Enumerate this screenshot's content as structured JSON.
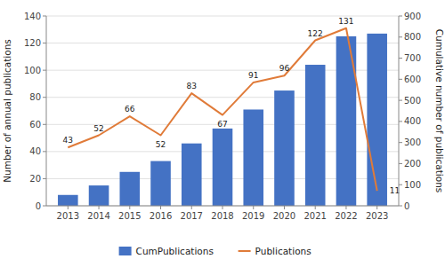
{
  "chart_data": {
    "type": "bar",
    "x": [
      2013,
      2014,
      2015,
      2016,
      2017,
      2018,
      2019,
      2020,
      2021,
      2022,
      2023
    ],
    "xlim": [
      2012.3,
      2023.7
    ],
    "xticks": [
      2013,
      2014,
      2015,
      2016,
      2017,
      2018,
      2019,
      2020,
      2021,
      2022,
      2023
    ],
    "ylabel": "Number of annual publications",
    "y2label": "Cumulative number of publications",
    "ylim": [
      0,
      140
    ],
    "yticks": [
      0,
      20,
      40,
      60,
      80,
      100,
      120,
      140
    ],
    "y2lim": [
      0,
      900
    ],
    "y2ticks": [
      0,
      100,
      200,
      300,
      400,
      500,
      600,
      700,
      800,
      900
    ],
    "grid": true,
    "legend": "bottom",
    "series": [
      {
        "name": "CumPublications",
        "type": "bar",
        "color": "#4472C4",
        "values": [
          8,
          15,
          25,
          33,
          46,
          57,
          71,
          85,
          104,
          125,
          127
        ]
      },
      {
        "name": "Publications",
        "type": "line",
        "color": "#E07B39",
        "data_labels": true,
        "values": [
          43,
          52,
          66,
          52,
          83,
          67,
          91,
          96,
          122,
          131,
          11
        ]
      }
    ]
  }
}
